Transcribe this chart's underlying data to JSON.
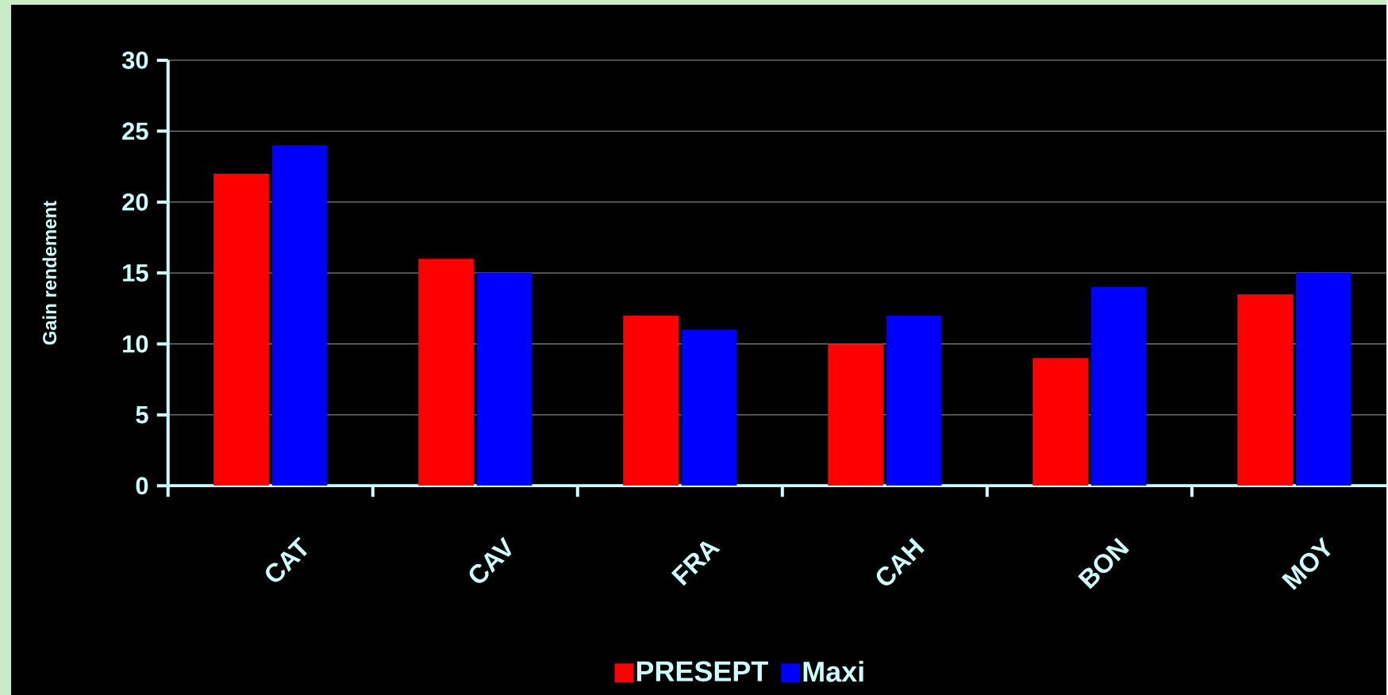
{
  "chart_data": {
    "type": "bar",
    "ylabel": "Gain rendement",
    "categories": [
      "CAT",
      "CAV",
      "FRA",
      "CAH",
      "BON",
      "MOY"
    ],
    "series": [
      {
        "name": "PRESEPT",
        "color": "#ff0000",
        "values": [
          22,
          16,
          12,
          10,
          9,
          13.5
        ]
      },
      {
        "name": "Maxi",
        "color": "#0000ff",
        "values": [
          24,
          15,
          11,
          12,
          14,
          15
        ]
      }
    ],
    "ylim": [
      0,
      30
    ],
    "yticks": [
      0,
      5,
      10,
      15,
      20,
      25,
      30
    ],
    "grid": "y",
    "legend": "bottom"
  }
}
